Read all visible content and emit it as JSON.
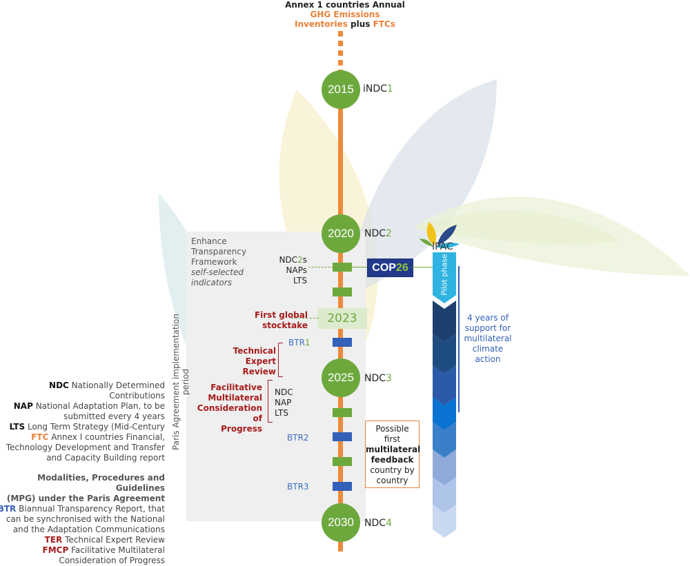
{
  "top_note": {
    "line1": "Annex 1 countries Annual",
    "line2": "GHG Emissions",
    "line3a": "Inventories",
    "line3b": "plus",
    "line3c": "FTCs"
  },
  "years": {
    "y2015": "2015",
    "y2020": "2020",
    "y2023": "2023",
    "y2025": "2025",
    "y2030": "2030"
  },
  "ndc_labels": {
    "indc_prefix": "iNDC",
    "indc_num": "1",
    "ndc2_prefix": "NDC",
    "ndc2_num": "2",
    "ndc3_prefix": "NDC",
    "ndc3_num": "3",
    "ndc4_prefix": "NDC",
    "ndc4_num": "4"
  },
  "framework": {
    "line1": "Enhance",
    "line2": "Transparency",
    "line3": "Framework",
    "line4": "self-selected",
    "line5": "indicators"
  },
  "submissions_2021": {
    "ndc2s_prefix": "NDC",
    "ndc2s_num": "2",
    "ndc2s_suffix": "s",
    "naps": "NAPs",
    "lts": "LTS"
  },
  "stocktake": {
    "line1": "First global",
    "line2": "stocktake"
  },
  "btr": {
    "btr1_prefix": "BTR",
    "btr1_num": "1",
    "btr2": "BTR2",
    "btr3": "BTR3"
  },
  "ter": {
    "line1": "Technical",
    "line2": "Expert",
    "line3": "Review"
  },
  "fmcp": {
    "line1": "Facilitative",
    "line2": "Multilateral",
    "line3": "Consideration of",
    "line4": "Progress"
  },
  "submissions_2025": {
    "ndc": "NDC",
    "nap": "NAP",
    "lts": "LTS"
  },
  "vertical_label": "Paris Agreement implementation period",
  "cop26": {
    "cop": "COP",
    "num": "26"
  },
  "ipac": {
    "name": "IPAC",
    "pilot": "Pilot phase"
  },
  "support": {
    "line1": "4 years of",
    "line2": "support for",
    "line3": "multilateral",
    "line4": "climate",
    "line5": "action"
  },
  "feedback": {
    "line1": "Possible",
    "line2": "first",
    "line3": "multilateral",
    "line4": "feedback",
    "line5": "country by",
    "line6": "country"
  },
  "legend": {
    "ndc_key": "NDC",
    "ndc_desc": "Nationally Determined Contributions",
    "nap_key": "NAP",
    "nap_desc1": "National Adaptation Plan, to be",
    "nap_desc2": "submitted every 4 years",
    "lts_key": "LTS",
    "lts_desc": "Long Term Strategy (Mid-Century",
    "ftc_key": "FTC",
    "ftc_desc1": "Annex I countries Financial,",
    "ftc_desc2": "Technology Development and Transfer",
    "ftc_desc3": "and Capacity Building report",
    "mpg_line1": "Modalities, Procedures and Guidelines",
    "mpg_line2": "(MPG)  under the Paris Agreement",
    "btr_key": "BTR",
    "btr_desc1": "Biannual Transparency Report, that",
    "btr_desc2": "can be synchronised with the National",
    "btr_desc3": "and the Adaptation Communications",
    "ter_key": "TER",
    "ter_desc": "Technical Expert Review",
    "fmcp_key": "FMCP",
    "fmcp_desc1": "Facilitative Multilateral",
    "fmcp_desc2": "Consideration of Progress"
  },
  "colors": {
    "timeline": "#ee8a3c",
    "year_circle": "#6da83d",
    "ndc_green": "#6da83d",
    "btr_blue": "#3360b8",
    "red_text": "#a61c1c",
    "ipac_cyan": "#2fb3e0"
  }
}
